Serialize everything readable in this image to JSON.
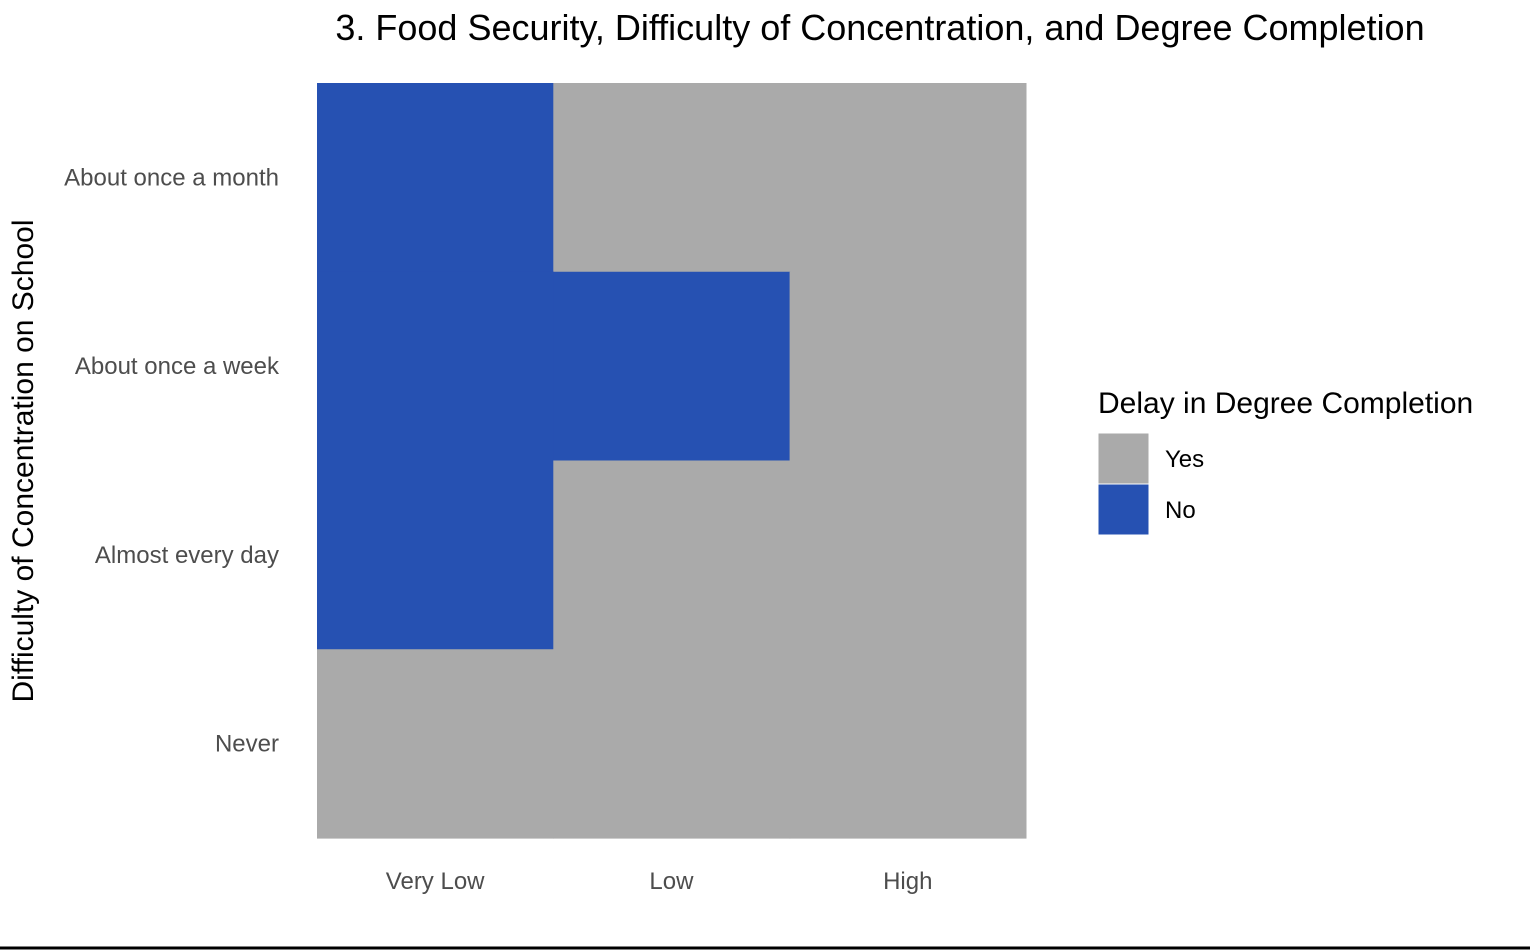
{
  "chart_data": {
    "type": "heatmap",
    "title": "3. Food Security, Difficulty of Concentration, and Degree Completion",
    "xlabel": "",
    "ylabel": "Difficulty of Concentration on School",
    "x_categories": [
      "Very Low",
      "Low",
      "High"
    ],
    "y_categories": [
      "About once a month",
      "About once a week",
      "Almost every day",
      "Never"
    ],
    "legend": {
      "title": "Delay in Degree Completion",
      "placement": "right",
      "entries": [
        {
          "label": "Yes",
          "color": "#aaaaaa"
        },
        {
          "label": "No",
          "color": "#2651b2"
        }
      ]
    },
    "cells": [
      {
        "x": "Very Low",
        "y": "About once a month",
        "value": "No"
      },
      {
        "x": "Low",
        "y": "About once a month",
        "value": "Yes"
      },
      {
        "x": "High",
        "y": "About once a month",
        "value": "Yes"
      },
      {
        "x": "Very Low",
        "y": "About once a week",
        "value": "No"
      },
      {
        "x": "Low",
        "y": "About once a week",
        "value": "No"
      },
      {
        "x": "High",
        "y": "About once a week",
        "value": "Yes"
      },
      {
        "x": "Very Low",
        "y": "Almost every day",
        "value": "No"
      },
      {
        "x": "Low",
        "y": "Almost every day",
        "value": "Yes"
      },
      {
        "x": "High",
        "y": "Almost every day",
        "value": "Yes"
      },
      {
        "x": "Very Low",
        "y": "Never",
        "value": "Yes"
      },
      {
        "x": "Low",
        "y": "Never",
        "value": "Yes"
      },
      {
        "x": "High",
        "y": "Never",
        "value": "Yes"
      }
    ],
    "grid": false
  }
}
